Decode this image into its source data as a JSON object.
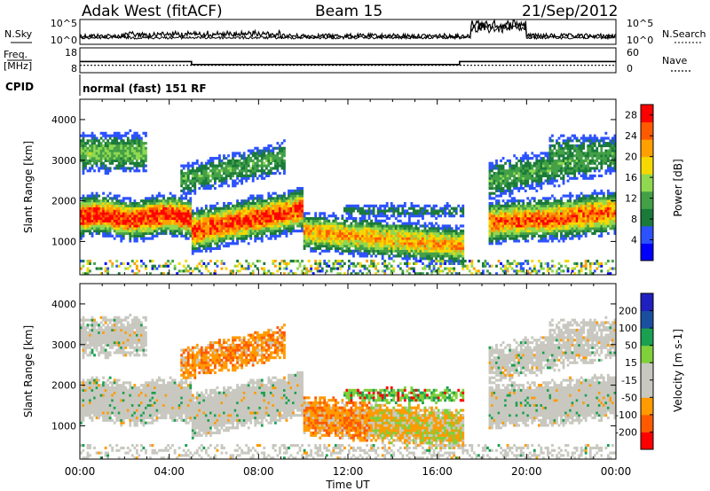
{
  "header": {
    "station": "Adak West (fitACF)",
    "beam": "Beam 15",
    "date": "21/Sep/2012"
  },
  "noise_panel": {
    "left_label": "N.Sky",
    "right_label": "N.Search",
    "left_ticks": [
      "10^5",
      "10^0"
    ],
    "right_ticks": [
      "10^5",
      "10^0"
    ]
  },
  "freq_panel": {
    "left_label_1": "Freq.",
    "left_label_2": "[MHz]",
    "left_ticks": [
      "18",
      "8"
    ],
    "right_label": "Nave",
    "right_ticks": [
      "60",
      "0"
    ]
  },
  "cpid": {
    "label": "CPID",
    "mode": "normal (fast) 151 RF"
  },
  "colors": {
    "power": [
      "#0000ff",
      "#2c52ff",
      "#1a7a3a",
      "#43a047",
      "#90d850",
      "#f5d800",
      "#ffa000",
      "#ff5a00",
      "#ff0000"
    ],
    "velocity": [
      "#ff0000",
      "#ff5a00",
      "#ff9a00",
      "#c8c8c0",
      "#c8c8c0",
      "#7fd03a",
      "#1aa050",
      "#1a4fa0",
      "#2020c0"
    ],
    "ground_scatter": "#c8c8c0"
  },
  "chart_data": [
    {
      "type": "heatmap",
      "title": "Power",
      "xlabel": "Time UT",
      "ylabel": "Slant Range [km]",
      "x_ticks": [
        "00:00",
        "04:00",
        "08:00",
        "12:00",
        "16:00",
        "20:00",
        "00:00"
      ],
      "y_ticks": [
        "1000",
        "2000",
        "3000",
        "4000"
      ],
      "ylim": [
        180,
        4500
      ],
      "colorbar": {
        "label": "Power [dB]",
        "ticks": [
          "4",
          "8",
          "12",
          "16",
          "20",
          "24",
          "28"
        ],
        "range": [
          0,
          30
        ]
      }
    },
    {
      "type": "heatmap",
      "title": "Velocity",
      "xlabel": "Time UT",
      "ylabel": "Slant Range [km]",
      "x_ticks": [
        "00:00",
        "04:00",
        "08:00",
        "12:00",
        "16:00",
        "20:00",
        "00:00"
      ],
      "y_ticks": [
        "1000",
        "2000",
        "3000",
        "4000"
      ],
      "ylim": [
        180,
        4500
      ],
      "colorbar": {
        "label": "Velocity [m s-1]",
        "ticks": [
          "200",
          "100",
          "50",
          "15",
          "-15",
          "-50",
          "-100",
          "-200"
        ]
      }
    },
    {
      "type": "line",
      "title": "Freq.",
      "x_hours": [
        0,
        5,
        5,
        17,
        17,
        24
      ],
      "freq_mhz": [
        12.3,
        12.3,
        10.6,
        10.6,
        12.3,
        12.3
      ],
      "nave": [
        13,
        13,
        13,
        13,
        13,
        13
      ]
    }
  ]
}
